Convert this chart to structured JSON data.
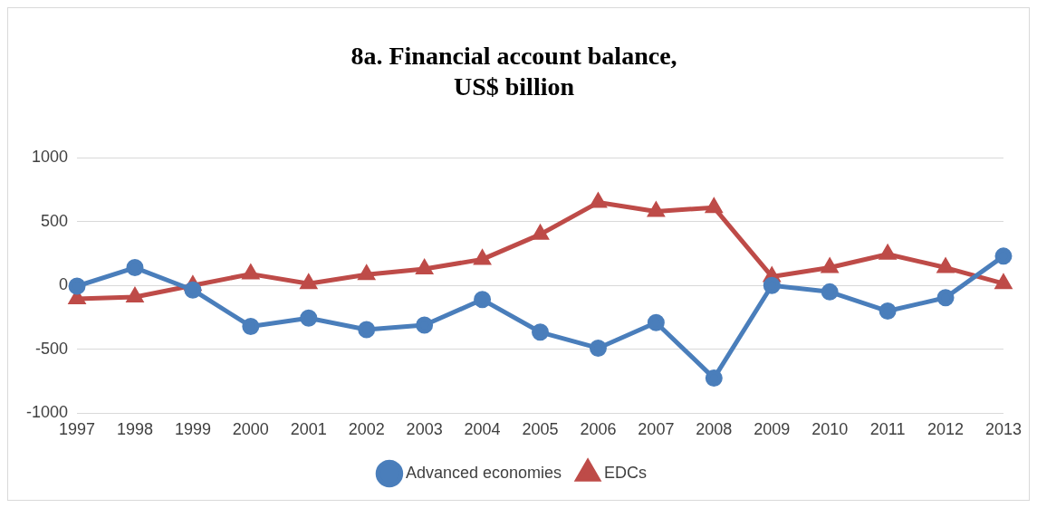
{
  "chart_data": {
    "type": "line",
    "title": "8a. Financial account balance,\nUS$ billion",
    "categories": [
      "1997",
      "1998",
      "1999",
      "2000",
      "2001",
      "2002",
      "2003",
      "2004",
      "2005",
      "2006",
      "2007",
      "2008",
      "2009",
      "2010",
      "2011",
      "2012",
      "2013"
    ],
    "series": [
      {
        "name": "Advanced economies",
        "color": "#4a7ebb",
        "marker": "circle",
        "values": [
          -5,
          140,
          -35,
          -320,
          -255,
          -345,
          -310,
          -110,
          -365,
          -490,
          -290,
          -725,
          0,
          -50,
          -200,
          -95,
          230
        ]
      },
      {
        "name": "EDCs",
        "color": "#be4b48",
        "marker": "triangle",
        "values": [
          -105,
          -90,
          0,
          90,
          15,
          85,
          130,
          205,
          400,
          650,
          580,
          610,
          70,
          140,
          245,
          140,
          15
        ]
      }
    ],
    "ylim": [
      -1000,
      1000
    ],
    "yticks": [
      -1000,
      -500,
      0,
      500,
      1000
    ],
    "grid": "y",
    "legend": "bottom"
  }
}
